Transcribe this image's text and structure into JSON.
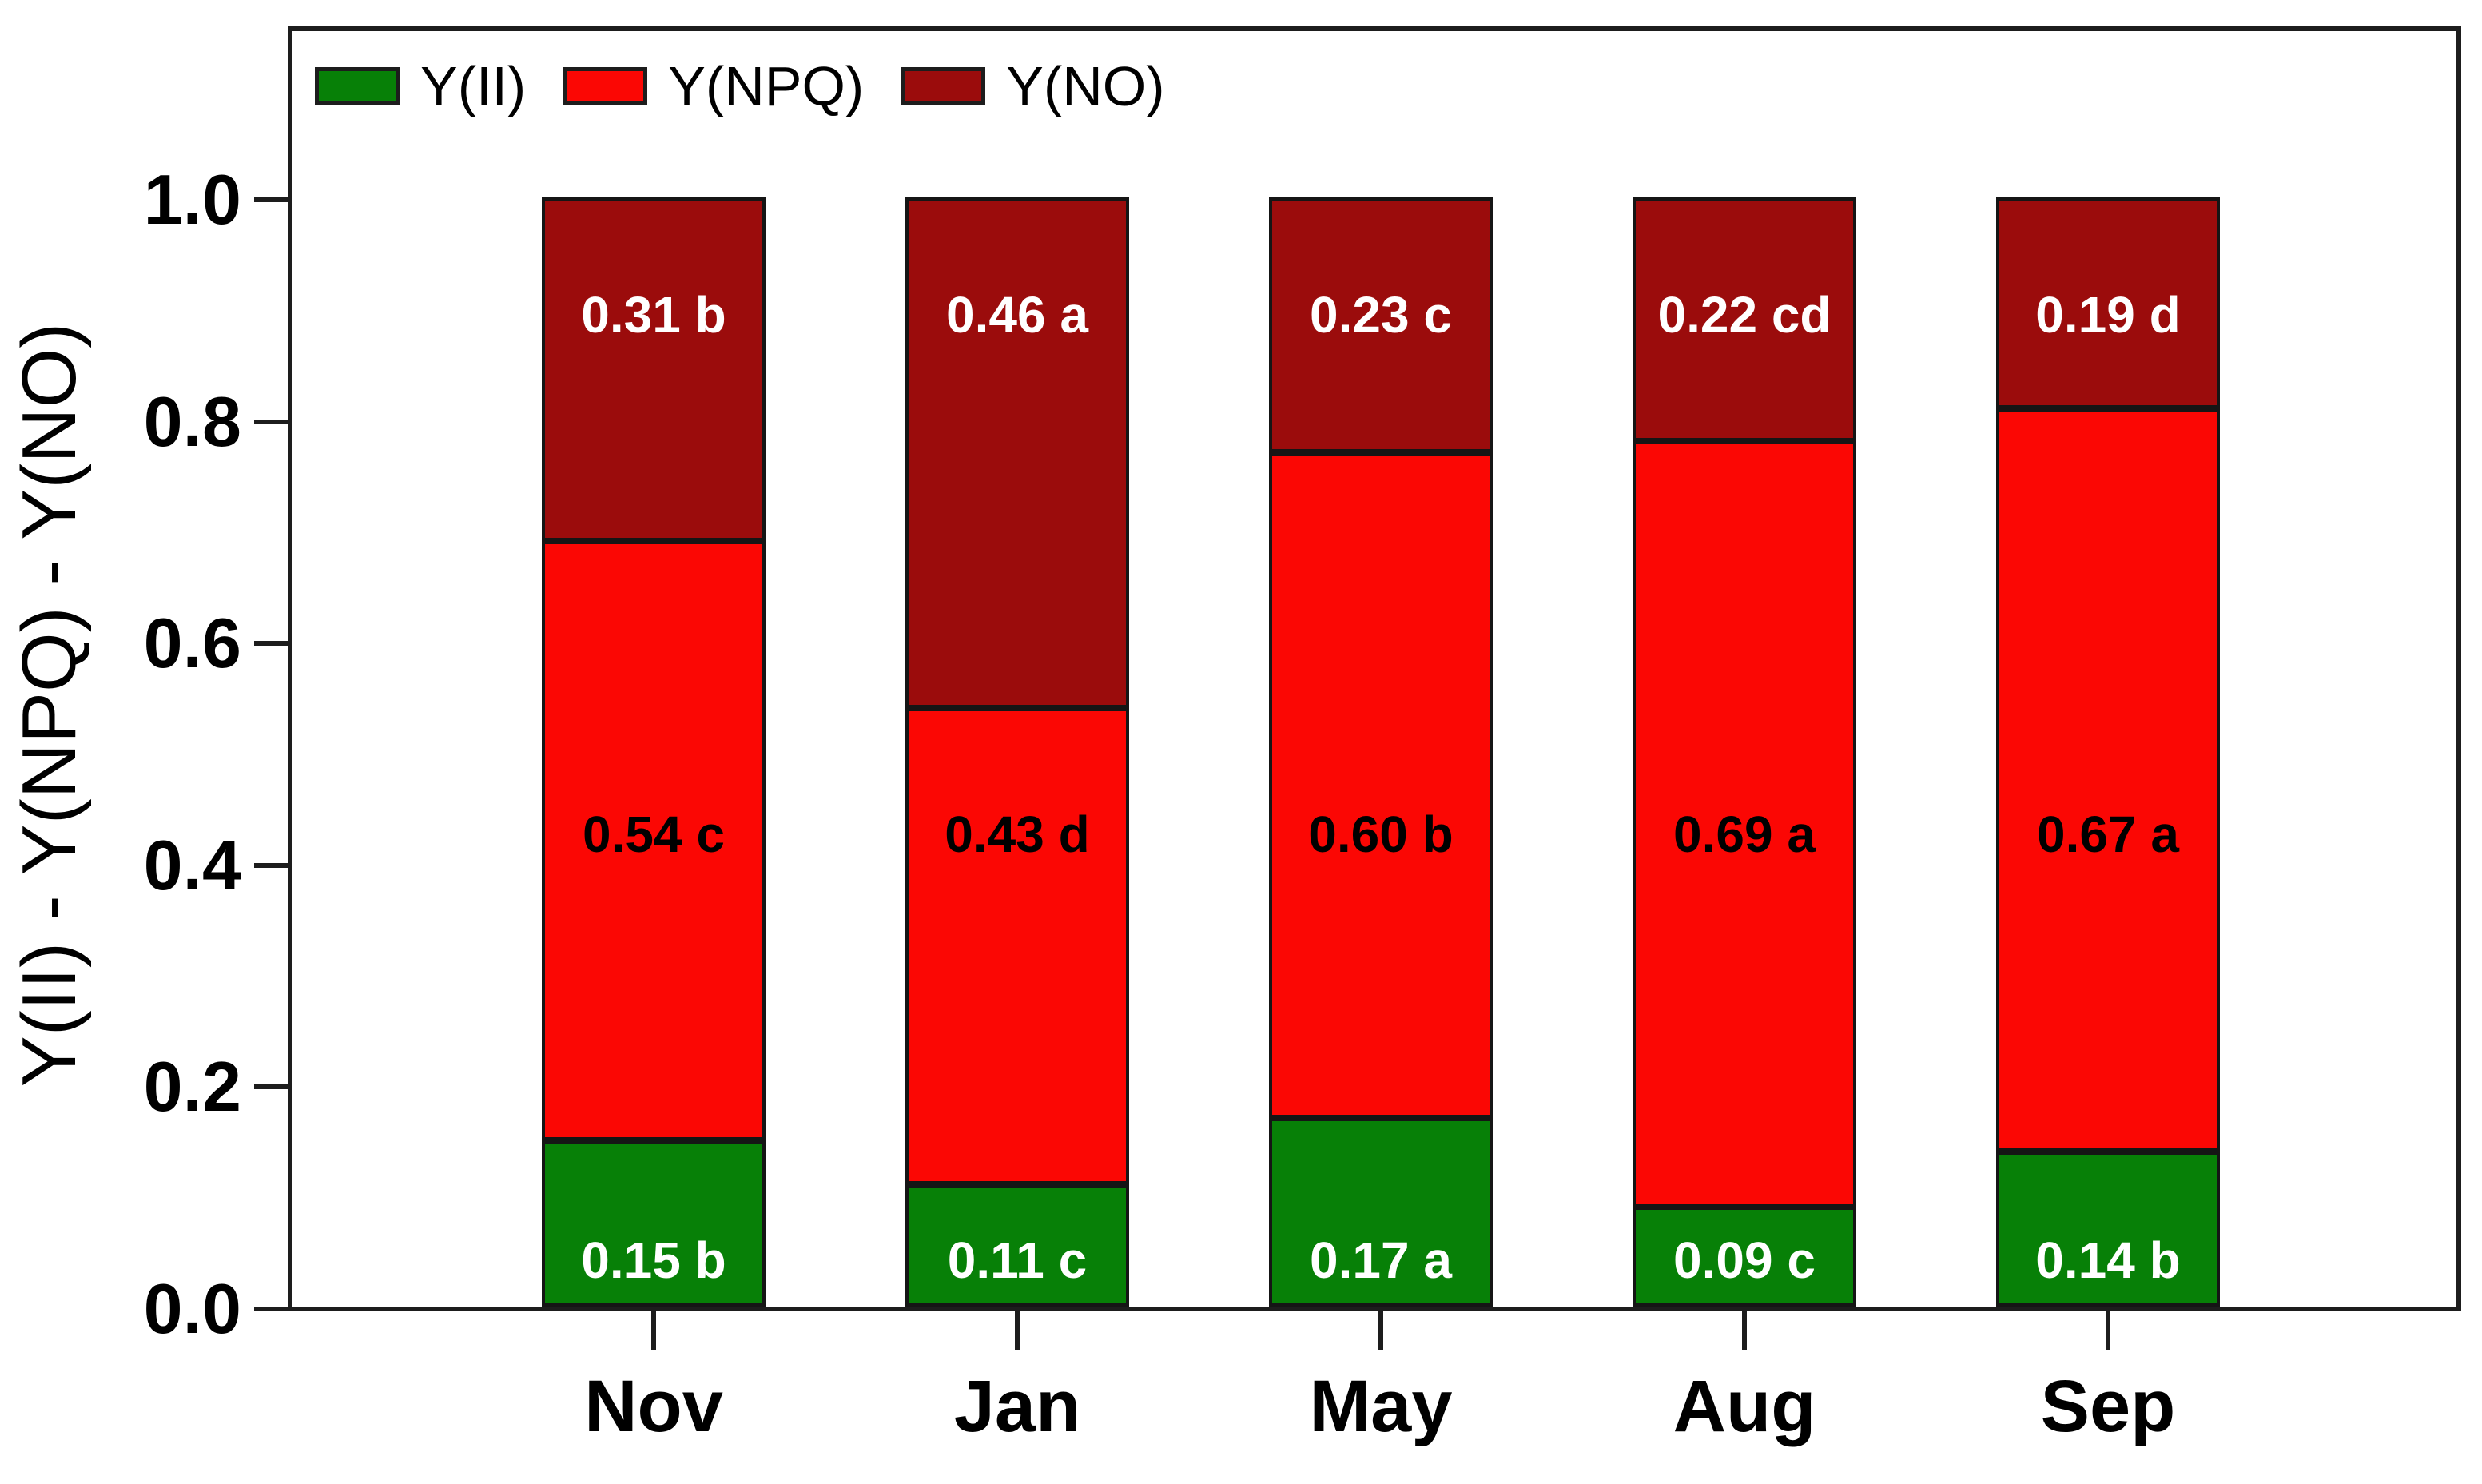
{
  "chart_data": {
    "type": "bar",
    "stacked": true,
    "title": "",
    "xlabel": "",
    "ylabel": "Y(II) - Y(NPQ) - Y(NO)",
    "ylim": [
      0.0,
      1.0
    ],
    "yticks": [
      "0.0",
      "0.2",
      "0.4",
      "0.6",
      "0.8",
      "1.0"
    ],
    "grid": false,
    "legend_position": "top-left-inside",
    "categories": [
      "Nov",
      "Jan",
      "May",
      "Aug",
      "Sep"
    ],
    "series": [
      {
        "name": "Y(II)",
        "color": "#078007",
        "label_color": "#ffffff",
        "values": [
          0.15,
          0.11,
          0.17,
          0.09,
          0.14
        ],
        "labels": [
          "0.15 b",
          "0.11 c",
          "0.17 a",
          "0.09 c",
          "0.14 b"
        ]
      },
      {
        "name": "Y(NPQ)",
        "color": "#fb0704",
        "label_color": "#000000",
        "values": [
          0.54,
          0.43,
          0.6,
          0.69,
          0.67
        ],
        "labels": [
          "0.54 c",
          "0.43 d",
          "0.60 b",
          "0.69 a",
          "0.67 a"
        ]
      },
      {
        "name": "Y(NO)",
        "color": "#9b0c0c",
        "label_color": "#ffffff",
        "values": [
          0.31,
          0.46,
          0.23,
          0.22,
          0.19
        ],
        "labels": [
          "0.31 b",
          "0.46 a",
          "0.23 c",
          "0.22 cd",
          "0.19 d"
        ]
      }
    ],
    "outline_color": "#1d1d1d"
  }
}
